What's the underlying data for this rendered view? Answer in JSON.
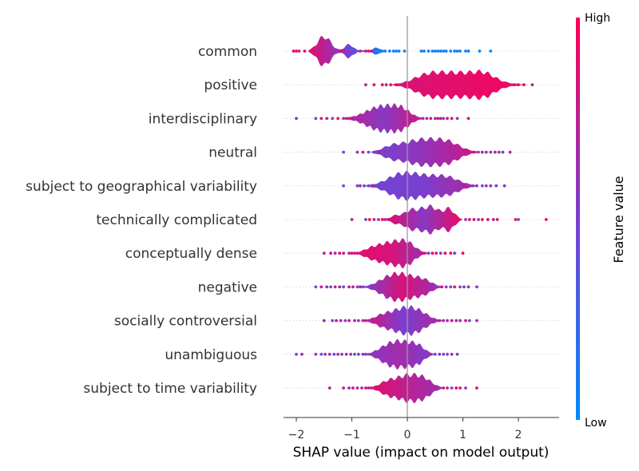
{
  "chart_data": {
    "type": "violin",
    "xlabel": "SHAP value (impact on model output)",
    "xlim": [
      -2.2,
      2.75
    ],
    "xticks": [
      -2,
      -1,
      0,
      1,
      2
    ],
    "xtick_labels": [
      "−2",
      "−1",
      "0",
      "1",
      "2"
    ],
    "colorbar": {
      "label": "Feature value",
      "high_label": "High",
      "low_label": "Low",
      "low_color": "#008afb",
      "high_color": "#ff0052"
    },
    "grid": false,
    "features": [
      {
        "name": "common",
        "range": [
          -2.05,
          1.5
        ],
        "peaks": [
          [
            -1.5,
            1.0,
            0.12
          ],
          [
            -1.05,
            0.45,
            0.08
          ],
          [
            -0.55,
            0.25,
            0.06
          ]
        ],
        "dots_left": [
          -2.05,
          -2.0,
          -1.95,
          -1.85,
          -1.7,
          -1.62,
          -1.2,
          -1.15,
          -0.85,
          -0.75,
          -0.7,
          -0.65,
          -0.55,
          -0.5,
          -0.45,
          -0.4,
          -0.32,
          -0.25,
          -0.2,
          -0.15,
          -0.05
        ],
        "dots_right": [
          0.25,
          0.3,
          0.38,
          0.45,
          0.5,
          0.55,
          0.6,
          0.65,
          0.7,
          0.78,
          0.85,
          0.9,
          0.95,
          1.05,
          1.1,
          1.3,
          1.5
        ],
        "colors": [
          0.9,
          0.5,
          0.1
        ]
      },
      {
        "name": "positive",
        "range": [
          -0.75,
          2.25
        ],
        "peaks": [
          [
            0.95,
            1.0,
            0.45
          ],
          [
            0.35,
            0.55,
            0.25
          ],
          [
            1.4,
            0.45,
            0.18
          ]
        ],
        "dots_left": [
          -0.75,
          -0.6,
          -0.45,
          -0.38,
          -0.3,
          -0.2,
          -0.12,
          -0.05
        ],
        "dots_right": [
          1.7,
          1.78,
          1.85,
          1.92,
          2.0,
          2.1,
          2.25
        ],
        "colors": [
          0.85,
          0.95
        ]
      },
      {
        "name": "interdisciplinary",
        "range": [
          -2.0,
          1.1
        ],
        "peaks": [
          [
            -0.45,
            1.0,
            0.28
          ],
          [
            -0.1,
            0.5,
            0.15
          ]
        ],
        "dots_left": [
          -2.0,
          -1.65,
          -1.55,
          -1.45,
          -1.35,
          -1.25,
          -1.15,
          -1.1,
          -1.05,
          -1.0,
          -0.95
        ],
        "dots_right": [
          0.15,
          0.2,
          0.28,
          0.35,
          0.42,
          0.5,
          0.55,
          0.6,
          0.65,
          0.72,
          0.8,
          0.9,
          1.1
        ],
        "colors": [
          0.75,
          0.55,
          0.85
        ]
      },
      {
        "name": "neutral",
        "range": [
          -1.15,
          1.85
        ],
        "peaks": [
          [
            0.25,
            1.0,
            0.35
          ],
          [
            0.75,
            0.55,
            0.22
          ],
          [
            -0.3,
            0.3,
            0.15
          ]
        ],
        "dots_left": [
          -1.15,
          -0.9,
          -0.8,
          -0.7,
          -0.6,
          -0.5,
          -0.45,
          -0.4
        ],
        "dots_right": [
          1.2,
          1.28,
          1.35,
          1.42,
          1.5,
          1.58,
          1.65,
          1.72,
          1.85
        ],
        "colors": [
          0.45,
          0.6,
          0.8
        ]
      },
      {
        "name": "subject to geographical variability",
        "range": [
          -1.15,
          1.75
        ],
        "peaks": [
          [
            0.25,
            1.0,
            0.4
          ],
          [
            -0.15,
            0.6,
            0.22
          ],
          [
            0.75,
            0.45,
            0.2
          ]
        ],
        "dots_left": [
          -1.15,
          -0.9,
          -0.85,
          -0.78,
          -0.7,
          -0.62,
          -0.55,
          -0.5
        ],
        "dots_right": [
          1.05,
          1.1,
          1.18,
          1.25,
          1.35,
          1.42,
          1.5,
          1.6,
          1.75
        ],
        "colors": [
          0.45,
          0.5,
          0.7
        ]
      },
      {
        "name": "technically complicated",
        "range": [
          -1.0,
          2.5
        ],
        "peaks": [
          [
            0.45,
            1.0,
            0.12
          ],
          [
            0.75,
            0.9,
            0.1
          ],
          [
            0.05,
            0.75,
            0.1
          ],
          [
            0.25,
            0.6,
            0.1
          ],
          [
            -0.2,
            0.35,
            0.1
          ]
        ],
        "dots_left": [
          -1.0,
          -0.75,
          -0.68,
          -0.6,
          -0.52,
          -0.45,
          -0.4,
          -0.35,
          -0.3,
          -0.25
        ],
        "dots_right": [
          1.05,
          1.12,
          1.2,
          1.28,
          1.35,
          1.45,
          1.55,
          1.62,
          1.95,
          2.0,
          2.5
        ],
        "colors": [
          0.9,
          0.55,
          0.95
        ]
      },
      {
        "name": "conceptually dense",
        "range": [
          -1.5,
          1.0
        ],
        "peaks": [
          [
            -0.3,
            1.0,
            0.22
          ],
          [
            0.0,
            0.8,
            0.15
          ],
          [
            -0.65,
            0.35,
            0.15
          ]
        ],
        "dots_left": [
          -1.5,
          -1.38,
          -1.3,
          -1.22,
          -1.15,
          -1.05,
          -1.0,
          -0.95,
          -0.9
        ],
        "dots_right": [
          0.25,
          0.3,
          0.38,
          0.45,
          0.52,
          0.6,
          0.68,
          0.78,
          0.85,
          1.0
        ],
        "colors": [
          0.9,
          0.85,
          0.6
        ]
      },
      {
        "name": "negative",
        "range": [
          -1.65,
          1.25
        ],
        "peaks": [
          [
            -0.05,
            1.0,
            0.22
          ],
          [
            -0.35,
            0.7,
            0.2
          ],
          [
            0.3,
            0.55,
            0.15
          ]
        ],
        "dots_left": [
          -1.65,
          -1.55,
          -1.45,
          -1.38,
          -1.3,
          -1.22,
          -1.15,
          -1.05,
          -0.98,
          -0.9,
          -0.85,
          -0.8
        ],
        "dots_right": [
          0.55,
          0.62,
          0.7,
          0.78,
          0.85,
          0.95,
          1.02,
          1.1,
          1.25
        ],
        "colors": [
          0.45,
          0.85,
          0.6
        ]
      },
      {
        "name": "socially controversial",
        "range": [
          -1.5,
          1.25
        ],
        "peaks": [
          [
            -0.1,
            1.0,
            0.2
          ],
          [
            0.2,
            0.75,
            0.18
          ],
          [
            -0.45,
            0.45,
            0.15
          ]
        ],
        "dots_left": [
          -1.5,
          -1.35,
          -1.28,
          -1.2,
          -1.12,
          -1.05,
          -0.95,
          -0.88,
          -0.8,
          -0.75,
          -0.7
        ],
        "dots_right": [
          0.5,
          0.58,
          0.65,
          0.72,
          0.8,
          0.88,
          0.95,
          1.05,
          1.12,
          1.25
        ],
        "colors": [
          0.85,
          0.5,
          0.7
        ]
      },
      {
        "name": "unambiguous",
        "range": [
          -2.0,
          0.9
        ],
        "peaks": [
          [
            -0.05,
            1.0,
            0.2
          ],
          [
            -0.35,
            0.7,
            0.18
          ],
          [
            0.2,
            0.5,
            0.12
          ]
        ],
        "dots_left": [
          -2.0,
          -1.9,
          -1.65,
          -1.55,
          -1.48,
          -1.4,
          -1.32,
          -1.25,
          -1.18,
          -1.1,
          -1.02,
          -0.95,
          -0.88,
          -0.8,
          -0.75
        ],
        "dots_right": [
          0.35,
          0.42,
          0.5,
          0.58,
          0.65,
          0.72,
          0.8,
          0.9
        ],
        "colors": [
          0.55,
          0.65,
          0.5
        ]
      },
      {
        "name": "subject to time variability",
        "range": [
          -1.4,
          1.25
        ],
        "peaks": [
          [
            0.0,
            1.0,
            0.18
          ],
          [
            0.3,
            0.7,
            0.15
          ],
          [
            -0.35,
            0.55,
            0.15
          ]
        ],
        "dots_left": [
          -1.4,
          -1.15,
          -1.05,
          -0.98,
          -0.9,
          -0.82,
          -0.75,
          -0.7,
          -0.65,
          -0.6
        ],
        "dots_right": [
          0.5,
          0.58,
          0.65,
          0.72,
          0.8,
          0.88,
          0.95,
          1.05,
          1.25
        ],
        "colors": [
          0.9,
          0.75,
          0.6
        ]
      }
    ]
  }
}
